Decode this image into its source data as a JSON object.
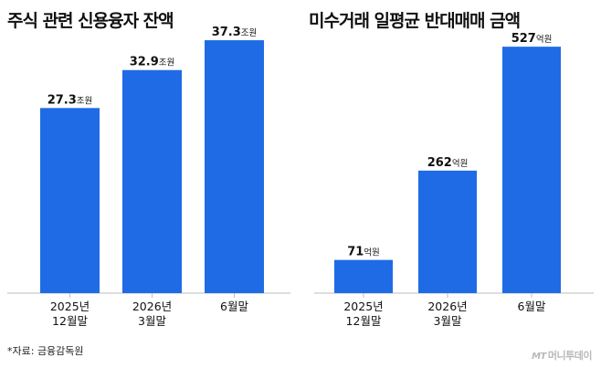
{
  "chart_data": [
    {
      "type": "bar",
      "title": "주식 관련 신용융자 잔액",
      "categories": [
        [
          "2025년",
          "12월말"
        ],
        [
          "2026년",
          "3월말"
        ],
        [
          "6월말"
        ]
      ],
      "values": [
        27.3,
        32.9,
        37.3
      ],
      "value_labels": [
        "27.3",
        "32.9",
        "37.3"
      ],
      "unit": "조원",
      "ylim": [
        0,
        40
      ],
      "grid": false,
      "bar_color": "#1f6be6"
    },
    {
      "type": "bar",
      "title": "미수거래 일평균 반대매매 금액",
      "categories": [
        [
          "2025년",
          "12월말"
        ],
        [
          "2026년",
          "3월말"
        ],
        [
          "6월말"
        ]
      ],
      "values": [
        71,
        262,
        527
      ],
      "value_labels": [
        "71",
        "262",
        "527"
      ],
      "unit": "억원",
      "ylim": [
        0,
        580
      ],
      "grid": false,
      "bar_color": "#1f6be6"
    }
  ],
  "source_note": "*자료: 금융감독원",
  "logo": {
    "mark": "MT",
    "text": "머니투데이"
  },
  "colors": {
    "bar": "#1f6be6",
    "axis": "#bdbdbd",
    "logo": "#b9b9b9"
  }
}
